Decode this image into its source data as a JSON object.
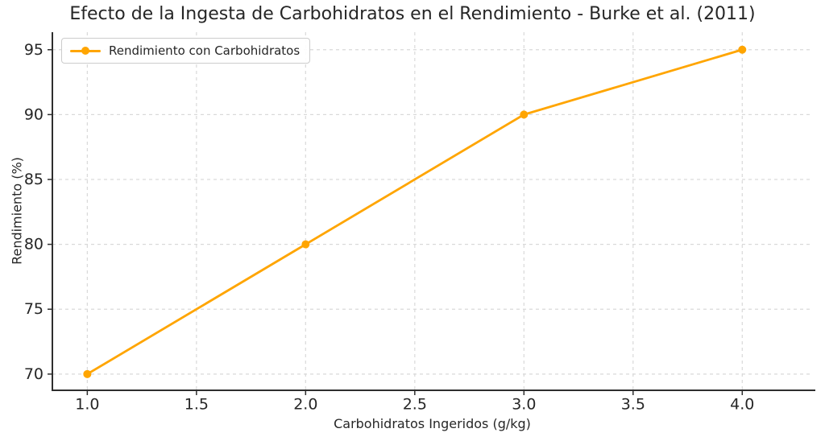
{
  "chart": {
    "title": "Efecto de la Ingesta de Carbohidratos en el Rendimiento - Burke et al. (2011)"
  },
  "chart_data": {
    "type": "line",
    "title": "Efecto de la Ingesta de Carbohidratos en el Rendimiento - Burke et al. (2011)",
    "xlabel": "Carbohidratos Ingeridos (g/kg)",
    "ylabel": "Rendimiento (%)",
    "series": [
      {
        "name": "Rendimiento con Carbohidratos",
        "x": [
          1.0,
          2.0,
          3.0,
          4.0
        ],
        "y": [
          70,
          80,
          90,
          95
        ],
        "color": "#FFA500",
        "marker": "circle",
        "line_width": 2.8,
        "marker_radius": 5
      }
    ],
    "xticks": {
      "values": [
        1.0,
        1.5,
        2.0,
        2.5,
        3.0,
        3.5,
        4.0
      ],
      "labels": [
        "1.0",
        "1.5",
        "2.0",
        "2.5",
        "3.0",
        "3.5",
        "4.0"
      ]
    },
    "yticks": {
      "values": [
        70,
        75,
        80,
        85,
        90,
        95
      ],
      "labels": [
        "70",
        "75",
        "80",
        "85",
        "90",
        "95"
      ]
    },
    "xlim": [
      0.84,
      4.32
    ],
    "ylim": [
      68.75,
      96.35
    ],
    "grid": true,
    "grid_style": "dashed",
    "legend_position": "upper left",
    "colors": {
      "line": "#FFA500",
      "grid": "#d9d9d9",
      "spine": "#2e2e2e",
      "text": "#262626",
      "legend_border": "#cccccc",
      "background": "#ffffff"
    }
  }
}
